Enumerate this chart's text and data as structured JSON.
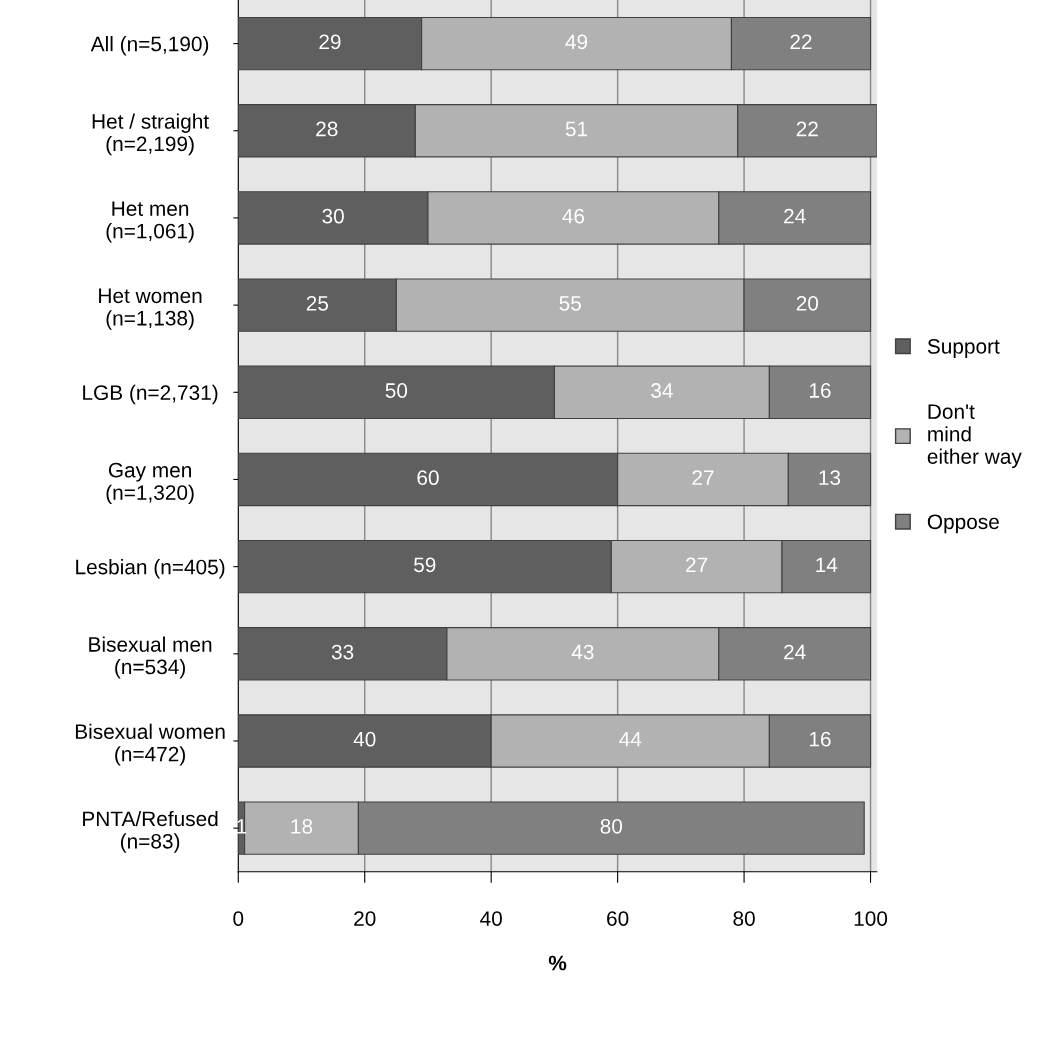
{
  "chart_data": {
    "type": "bar",
    "orientation": "horizontal",
    "stacked": true,
    "xlabel": "%",
    "categories": [
      "All (n=5,190)",
      "Het / straight\n(n=2,199)",
      "Het men\n(n=1,061)",
      "Het women\n(n=1,138)",
      "LGB (n=2,731)",
      "Gay men\n(n=1,320)",
      "Lesbian (n=405)",
      "Bisexual men\n(n=534)",
      "Bisexual women\n(n=472)",
      "PNTA/Refused\n(n=83)"
    ],
    "series": [
      {
        "name": "Support",
        "color": "#5f5f5f",
        "values": [
          29,
          28,
          30,
          25,
          50,
          60,
          59,
          33,
          40,
          1
        ]
      },
      {
        "name": "Don't\nmind\neither way",
        "color": "#b2b2b2",
        "values": [
          49,
          51,
          46,
          55,
          34,
          27,
          27,
          43,
          44,
          18
        ]
      },
      {
        "name": "Oppose",
        "color": "#808080",
        "values": [
          22,
          22,
          24,
          20,
          16,
          13,
          14,
          24,
          16,
          80
        ]
      }
    ],
    "xlim": [
      0,
      101
    ],
    "xticks": [
      0,
      20,
      40,
      60,
      80,
      100
    ],
    "grid": "x",
    "legend": "right",
    "data_labels": true
  }
}
